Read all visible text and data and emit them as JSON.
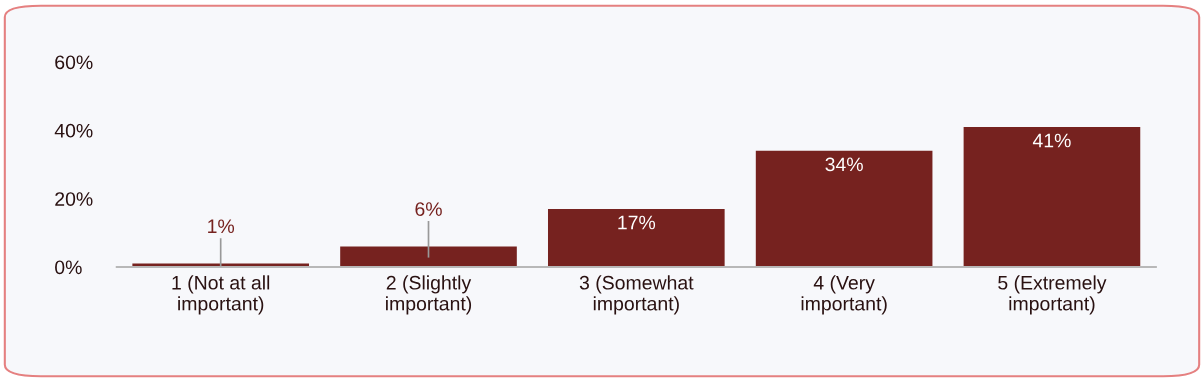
{
  "chart_data": {
    "type": "bar",
    "categories": [
      "1 (Not at all\nimportant)",
      "2 (Slightly\nimportant)",
      "3 (Somewhat\nimportant)",
      "4 (Very\nimportant)",
      "5 (Extremely\nimportant)"
    ],
    "values": [
      1,
      6,
      17,
      34,
      41
    ],
    "value_labels": [
      "1%",
      "6%",
      "17%",
      "34%",
      "41%"
    ],
    "color": "#76221f",
    "ylim": [
      0,
      60
    ],
    "yticks": [
      {
        "value": 0,
        "label": "0%"
      },
      {
        "value": 20,
        "label": "20%"
      },
      {
        "value": 40,
        "label": "40%"
      },
      {
        "value": 60,
        "label": "60%"
      }
    ],
    "legend": false
  }
}
